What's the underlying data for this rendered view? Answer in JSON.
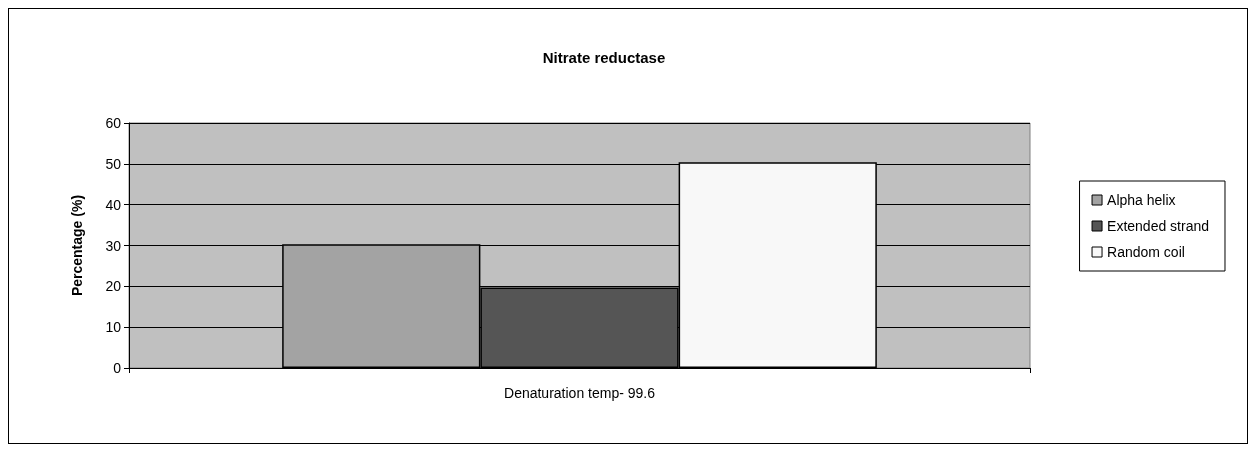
{
  "chart_data": {
    "type": "bar",
    "title": "Nitrate reductase",
    "ylabel": "Percentage (%)",
    "categories": [
      "Denaturation temp- 99.6"
    ],
    "series": [
      {
        "name": "Alpha helix",
        "color": "#a3a3a3",
        "values": [
          30.3
        ]
      },
      {
        "name": "Extended strand",
        "color": "#555555",
        "values": [
          19.7
        ]
      },
      {
        "name": "Random coil",
        "color": "#f8f8f8",
        "values": [
          50.4
        ]
      }
    ],
    "ylim": [
      0,
      60
    ],
    "yticks": [
      0,
      10,
      20,
      30,
      40,
      50,
      60
    ],
    "grid": "y",
    "legend": "right"
  }
}
